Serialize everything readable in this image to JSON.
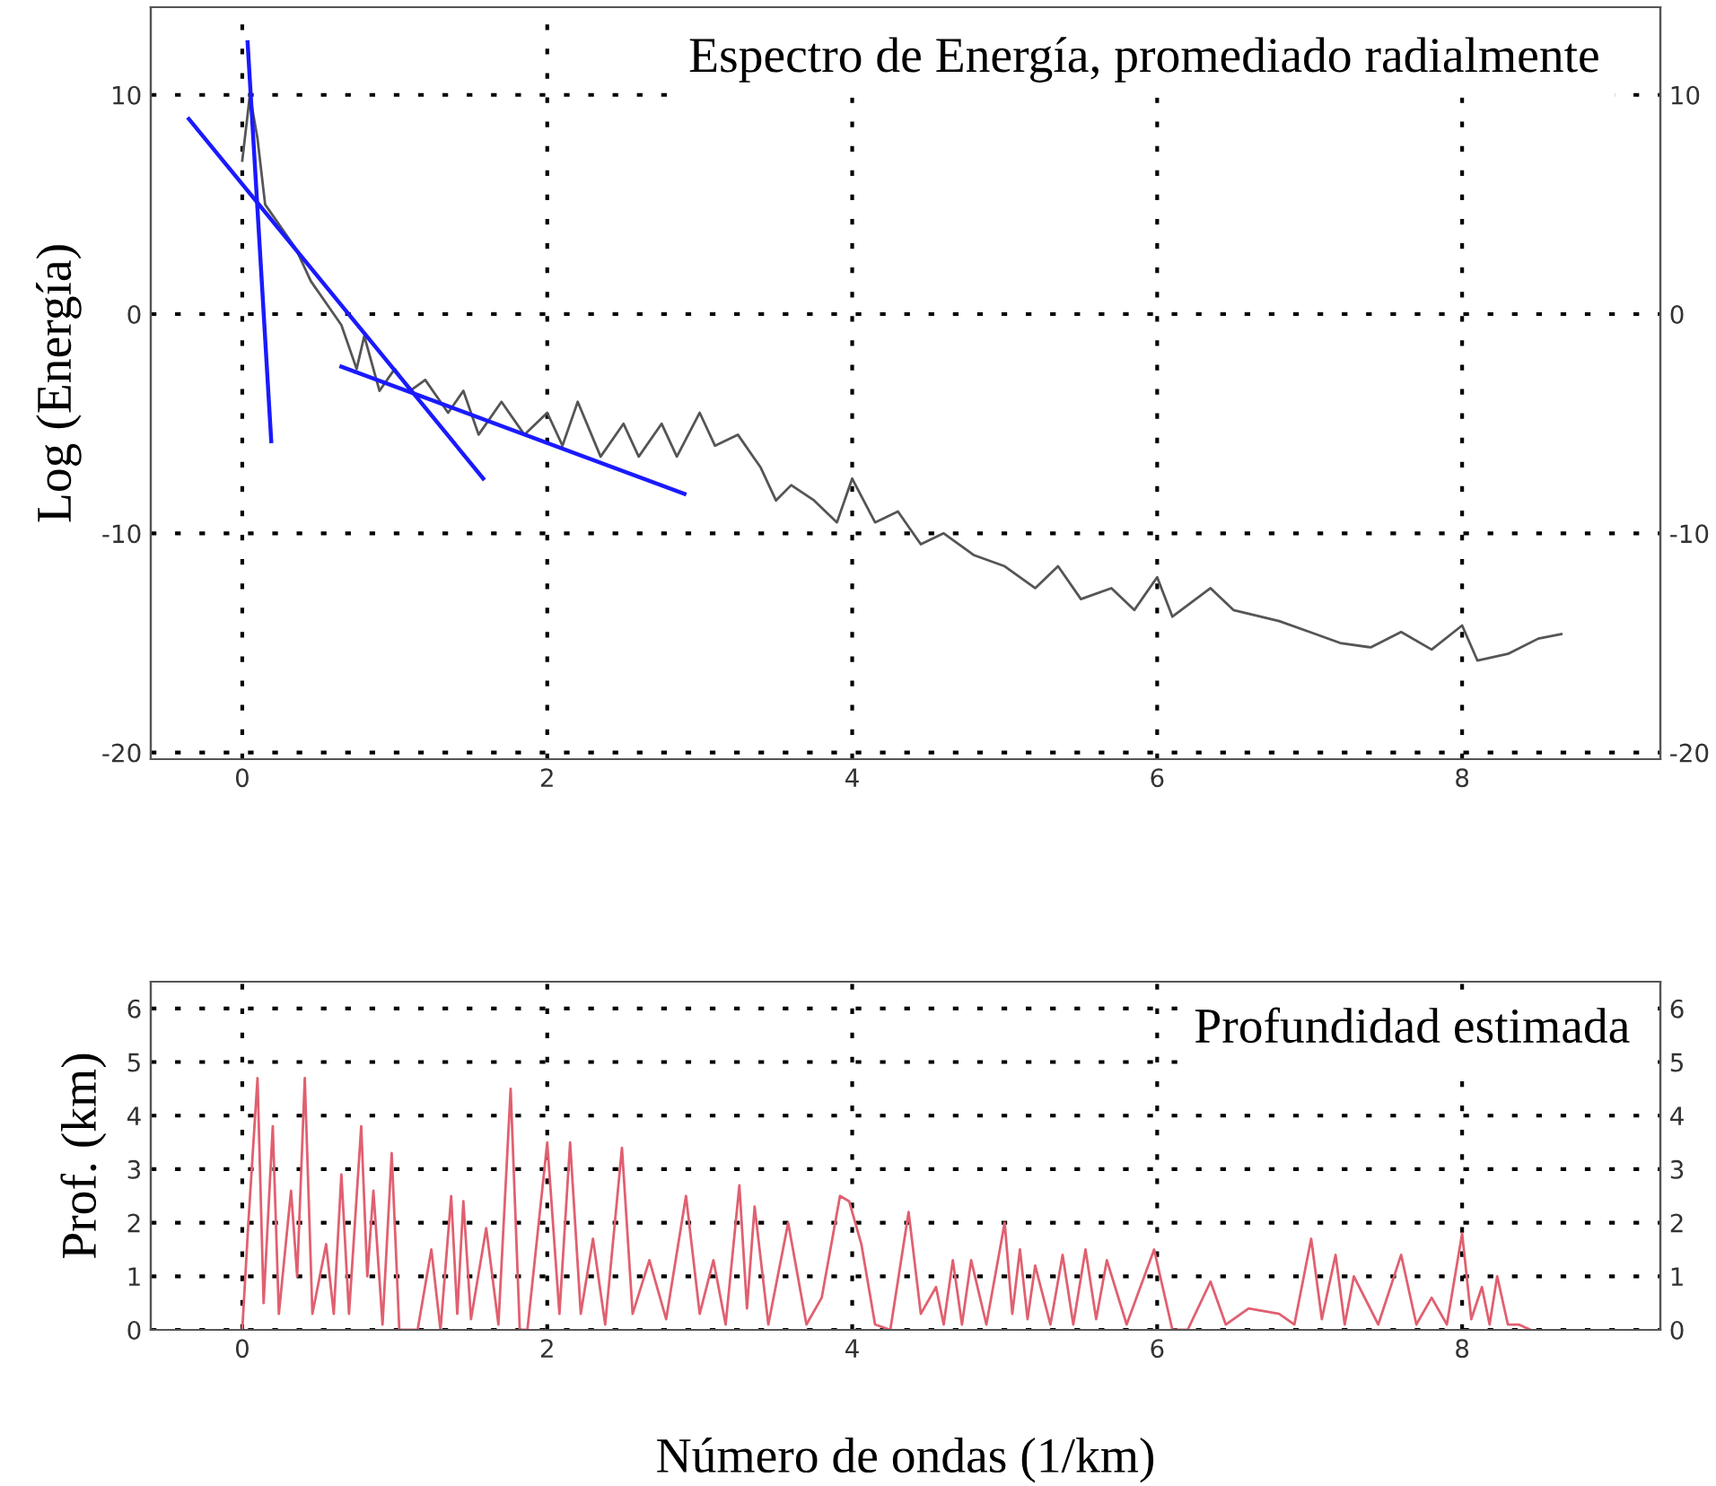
{
  "chart_data": [
    {
      "type": "line",
      "title": "Espectro de Energía, promediado radialmente",
      "ylabel": "Log (Energía)",
      "xlim": [
        -0.6,
        9.3
      ],
      "xticks": [
        0,
        2,
        4,
        6,
        8
      ],
      "ylim": [
        -20.3,
        14
      ],
      "yticks": [
        -20,
        -10,
        0,
        10
      ],
      "y2lim": [
        -20.3,
        14
      ],
      "y2ticks": [
        -20,
        -10,
        0,
        10
      ],
      "grid": true,
      "legend": false,
      "marker": "none",
      "line_style": "solid",
      "series": [
        {
          "color": "#555555",
          "x": [
            0.0,
            0.05,
            0.1,
            0.15,
            0.25,
            0.35,
            0.45,
            0.55,
            0.65,
            0.75,
            0.8,
            0.9,
            1.0,
            1.1,
            1.2,
            1.35,
            1.45,
            1.55,
            1.7,
            1.85,
            2.0,
            2.1,
            2.2,
            2.35,
            2.5,
            2.6,
            2.75,
            2.85,
            3.0,
            3.1,
            3.25,
            3.4,
            3.5,
            3.6,
            3.75,
            3.9,
            4.0,
            4.15,
            4.3,
            4.45,
            4.6,
            4.8,
            5.0,
            5.2,
            5.35,
            5.5,
            5.7,
            5.85,
            6.0,
            6.1,
            6.35,
            6.5,
            6.8,
            7.0,
            7.2,
            7.4,
            7.6,
            7.8,
            8.0,
            8.1,
            8.3,
            8.5,
            8.65
          ],
          "values": [
            7,
            10,
            8,
            5,
            4,
            3,
            1.5,
            0.5,
            -0.5,
            -2.5,
            -1,
            -3.5,
            -2.5,
            -3.5,
            -3.0,
            -4.5,
            -3.5,
            -5.5,
            -4,
            -5.5,
            -4.5,
            -6,
            -4,
            -6.5,
            -5,
            -6.5,
            -5,
            -6.5,
            -4.5,
            -6,
            -5.5,
            -7,
            -8.5,
            -7.8,
            -8.5,
            -9.5,
            -7.5,
            -9.5,
            -9,
            -10.5,
            -10,
            -11,
            -11.5,
            -12.5,
            -11.5,
            -13,
            -12.5,
            -13.5,
            -12,
            -13.8,
            -12.5,
            -13.5,
            -14,
            -14.5,
            -15,
            -15.2,
            -14.5,
            -15.3,
            -14.2,
            -15.8,
            -15.5,
            -14.8,
            -14.6
          ]
        },
        {
          "color": "#1a1aff",
          "x": [
            0.035,
            0.19
          ],
          "values": [
            12.4,
            -5.8
          ]
        },
        {
          "color": "#1a1aff",
          "x": [
            -0.35,
            1.58
          ],
          "values": [
            8.9,
            -7.5
          ]
        },
        {
          "color": "#1a1aff",
          "x": [
            0.65,
            2.9
          ],
          "values": [
            -2.4,
            -8.2
          ]
        }
      ]
    },
    {
      "type": "line",
      "title": "Profundidad estimada",
      "xlabel": "Número de ondas (1/km)",
      "ylabel": "Prof. (km)",
      "xlim": [
        -0.6,
        9.3
      ],
      "xticks": [
        0,
        2,
        4,
        6,
        8
      ],
      "ylim": [
        0,
        6.5
      ],
      "yticks": [
        0,
        1,
        2,
        3,
        4,
        5,
        6
      ],
      "y2lim": [
        0,
        6.5
      ],
      "y2ticks": [
        0,
        1,
        2,
        3,
        4,
        5,
        6
      ],
      "grid": true,
      "legend": false,
      "marker": "none",
      "line_style": "solid",
      "series": [
        {
          "color": "#e06070",
          "x": [
            0,
            0.04,
            0.1,
            0.14,
            0.2,
            0.24,
            0.32,
            0.36,
            0.41,
            0.46,
            0.55,
            0.6,
            0.65,
            0.7,
            0.78,
            0.82,
            0.86,
            0.92,
            0.98,
            1.03,
            1.15,
            1.24,
            1.3,
            1.37,
            1.41,
            1.45,
            1.5,
            1.6,
            1.68,
            1.76,
            1.82,
            1.87,
            2.0,
            2.08,
            2.15,
            2.22,
            2.3,
            2.38,
            2.49,
            2.56,
            2.67,
            2.78,
            2.91,
            3.0,
            3.09,
            3.17,
            3.26,
            3.31,
            3.36,
            3.45,
            3.58,
            3.7,
            3.8,
            3.92,
            3.98,
            4.06,
            4.15,
            4.25,
            4.37,
            4.45,
            4.55,
            4.6,
            4.66,
            4.72,
            4.78,
            4.88,
            5.0,
            5.05,
            5.1,
            5.15,
            5.2,
            5.3,
            5.38,
            5.45,
            5.53,
            5.6,
            5.67,
            5.8,
            5.98,
            6.1,
            6.2,
            6.35,
            6.45,
            6.6,
            6.8,
            6.9,
            7.01,
            7.08,
            7.17,
            7.23,
            7.29,
            7.45,
            7.6,
            7.7,
            7.8,
            7.9,
            8.0,
            8.06,
            8.13,
            8.18,
            8.23,
            8.3,
            8.37,
            8.45
          ],
          "values": [
            0,
            2,
            4.7,
            0.5,
            3.8,
            0.3,
            2.6,
            1.0,
            4.7,
            0.3,
            1.6,
            0.3,
            2.9,
            0.3,
            3.8,
            1.0,
            2.6,
            0.1,
            3.3,
            0,
            0,
            1.5,
            0,
            2.5,
            0.3,
            2.4,
            0.2,
            1.9,
            0.1,
            4.5,
            0,
            0,
            3.5,
            0.3,
            3.5,
            0.3,
            1.7,
            0.1,
            3.4,
            0.3,
            1.3,
            0.2,
            2.5,
            0.3,
            1.3,
            0.1,
            2.7,
            0.4,
            2.3,
            0.1,
            2.0,
            0.1,
            0.6,
            2.5,
            2.4,
            1.6,
            0.1,
            0,
            2.2,
            0.3,
            0.8,
            0.1,
            1.3,
            0.1,
            1.3,
            0.1,
            2.0,
            0.3,
            1.5,
            0.2,
            1.2,
            0.1,
            1.4,
            0.1,
            1.5,
            0.2,
            1.3,
            0.1,
            1.5,
            0,
            0,
            0.9,
            0.1,
            0.4,
            0.3,
            0.1,
            1.7,
            0.2,
            1.4,
            0.1,
            1.0,
            0.1,
            1.4,
            0.1,
            0.6,
            0.1,
            1.8,
            0.2,
            0.8,
            0.1,
            1.0,
            0.1,
            0.1,
            0
          ]
        }
      ]
    }
  ]
}
